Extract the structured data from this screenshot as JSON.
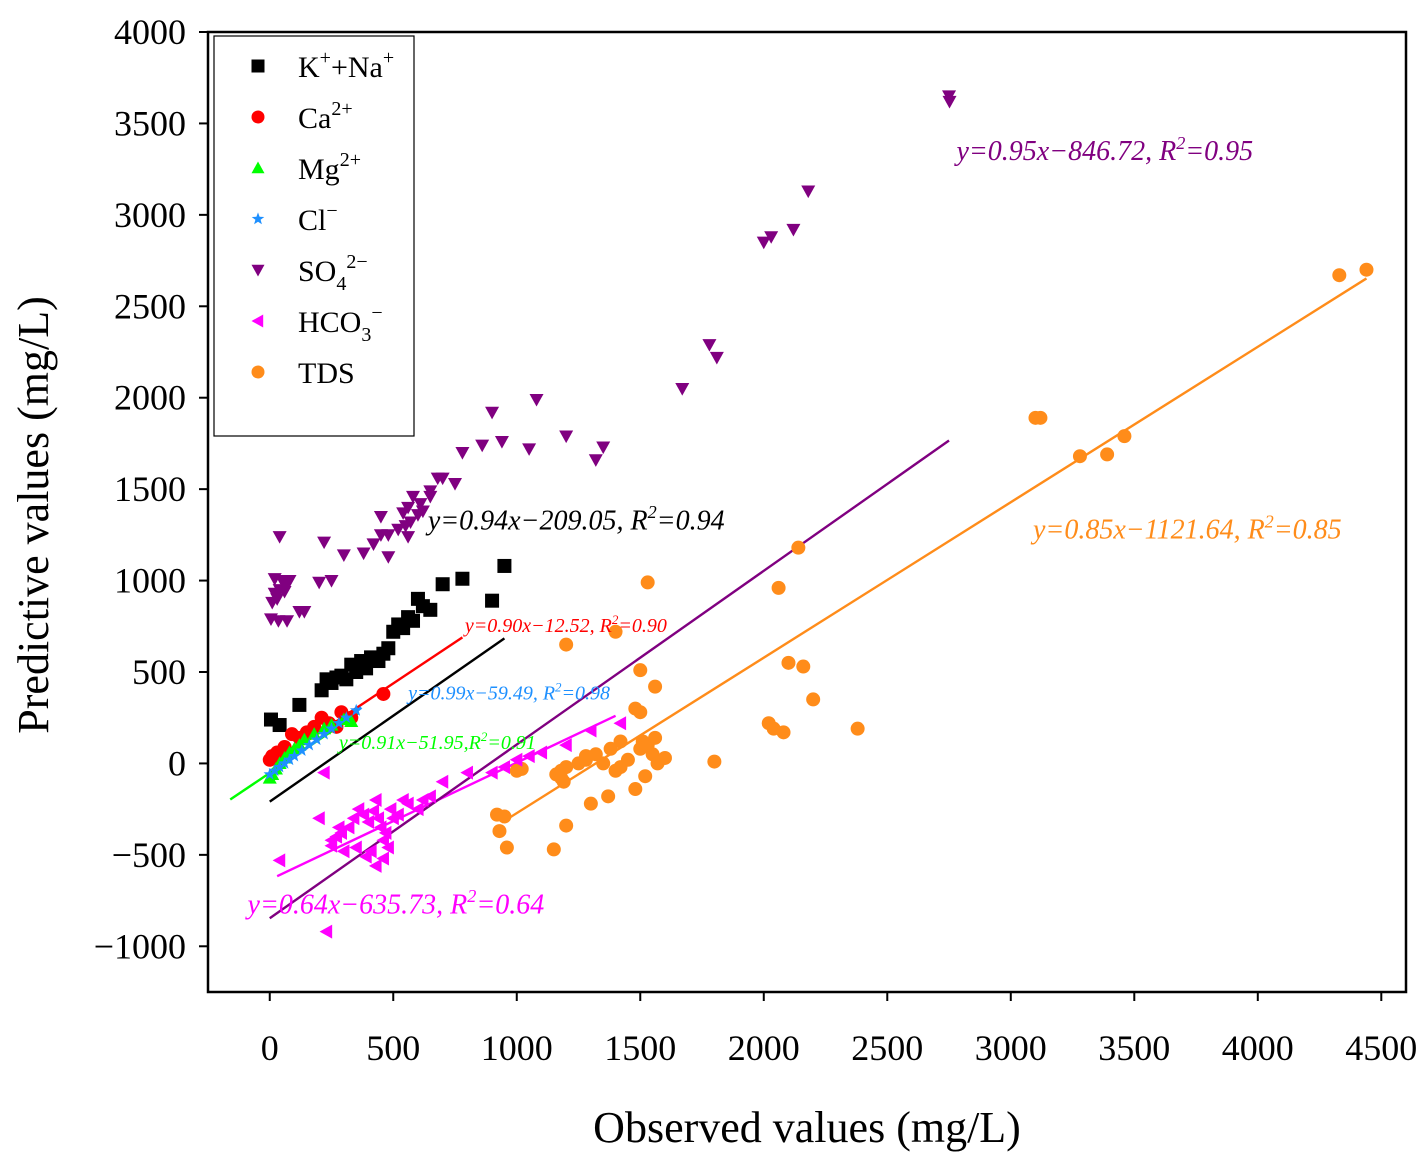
{
  "chart_data": {
    "type": "scatter",
    "xlabel": "Observed values (mg/L)",
    "ylabel": "Predictive values (mg/L)",
    "xlim": [
      -250,
      4600
    ],
    "ylim": [
      -1250,
      4000
    ],
    "x_ticks": [
      0,
      500,
      1000,
      1500,
      2000,
      2500,
      3000,
      3500,
      4000,
      4500
    ],
    "y_ticks": [
      -1000,
      -500,
      0,
      500,
      1000,
      1500,
      2000,
      2500,
      3000,
      3500,
      4000
    ],
    "x_tick_labels": [
      "0",
      "500",
      "1000",
      "1500",
      "2000",
      "2500",
      "3000",
      "3500",
      "4000",
      "4500"
    ],
    "y_tick_labels": [
      "−1000",
      "−500",
      "0",
      "500",
      "1000",
      "1500",
      "2000",
      "2500",
      "3000",
      "3500",
      "4000"
    ],
    "legend_position": "top-left",
    "series": [
      {
        "key": "kna",
        "name": "K⁺+Na⁺",
        "legend": {
          "base": "K",
          "sup1": "+",
          "mid": "+Na",
          "sup2": "+"
        },
        "marker": "square",
        "color": "#000000",
        "fit": {
          "slope": 0.94,
          "intercept": -209.05,
          "x_range": [
            0,
            950
          ]
        },
        "equation": {
          "main": "y=0.94x−209.05, R",
          "sup": "2",
          "tail": "=0.94"
        },
        "points": [
          [
            5,
            240
          ],
          [
            40,
            210
          ],
          [
            120,
            320
          ],
          [
            210,
            400
          ],
          [
            230,
            460
          ],
          [
            250,
            440
          ],
          [
            270,
            470
          ],
          [
            290,
            480
          ],
          [
            310,
            460
          ],
          [
            330,
            540
          ],
          [
            350,
            500
          ],
          [
            370,
            560
          ],
          [
            390,
            520
          ],
          [
            410,
            580
          ],
          [
            440,
            560
          ],
          [
            460,
            600
          ],
          [
            480,
            630
          ],
          [
            500,
            720
          ],
          [
            520,
            760
          ],
          [
            540,
            740
          ],
          [
            560,
            800
          ],
          [
            580,
            780
          ],
          [
            600,
            900
          ],
          [
            620,
            860
          ],
          [
            650,
            840
          ],
          [
            700,
            980
          ],
          [
            780,
            1010
          ],
          [
            900,
            890
          ],
          [
            950,
            1080
          ]
        ]
      },
      {
        "key": "ca",
        "name": "Ca²⁺",
        "legend": {
          "base": "Ca",
          "sup1": "2+"
        },
        "marker": "circle",
        "color": "#ff0000",
        "fit": {
          "slope": 0.9,
          "intercept": -12.52,
          "x_range": [
            0,
            780
          ]
        },
        "equation": {
          "main": "y=0.90x−12.52, R",
          "sup": "2",
          "tail": "=0.90"
        },
        "points": [
          [
            0,
            20
          ],
          [
            10,
            40
          ],
          [
            30,
            60
          ],
          [
            60,
            90
          ],
          [
            90,
            160
          ],
          [
            120,
            140
          ],
          [
            150,
            170
          ],
          [
            180,
            200
          ],
          [
            210,
            250
          ],
          [
            240,
            220
          ],
          [
            270,
            200
          ],
          [
            290,
            280
          ],
          [
            330,
            250
          ],
          [
            460,
            380
          ]
        ]
      },
      {
        "key": "mg",
        "name": "Mg²⁺",
        "legend": {
          "base": "Mg",
          "sup1": "2+"
        },
        "marker": "triangle-up",
        "color": "#00ff00",
        "fit": {
          "slope": 0.91,
          "intercept": -51.95,
          "x_range": [
            -160,
            360
          ]
        },
        "equation": {
          "main": "y=0.91x−51.95,R",
          "sup": "2",
          "tail": "=0.91"
        },
        "points": [
          [
            0,
            -80
          ],
          [
            10,
            -60
          ],
          [
            25,
            -30
          ],
          [
            40,
            0
          ],
          [
            60,
            30
          ],
          [
            80,
            60
          ],
          [
            100,
            80
          ],
          [
            120,
            100
          ],
          [
            140,
            130
          ],
          [
            180,
            160
          ],
          [
            220,
            190
          ],
          [
            250,
            210
          ],
          [
            300,
            240
          ],
          [
            330,
            230
          ]
        ]
      },
      {
        "key": "cl",
        "name": "Cl⁻",
        "legend": {
          "base": "Cl",
          "sup1": "−"
        },
        "marker": "star",
        "color": "#1e90ff",
        "fit": {
          "slope": 0.99,
          "intercept": -59.49,
          "x_range": [
            0,
            370
          ]
        },
        "equation": {
          "main": "y=0.99x−59.49, R",
          "sup": "2",
          "tail": "=0.98"
        },
        "points": [
          [
            0,
            -60
          ],
          [
            20,
            -40
          ],
          [
            40,
            -20
          ],
          [
            60,
            0
          ],
          [
            80,
            20
          ],
          [
            100,
            40
          ],
          [
            130,
            70
          ],
          [
            160,
            100
          ],
          [
            190,
            130
          ],
          [
            220,
            160
          ],
          [
            250,
            190
          ],
          [
            280,
            220
          ],
          [
            310,
            250
          ],
          [
            350,
            290
          ]
        ]
      },
      {
        "key": "so4",
        "name": "SO₄²⁻",
        "legend": {
          "base": "SO",
          "sub": "4",
          "sup1": "2−"
        },
        "marker": "triangle-down",
        "color": "#800080",
        "fit": {
          "slope": 0.95,
          "intercept": -846.72,
          "x_range": [
            0,
            2750
          ]
        },
        "equation": {
          "main": "y=0.95x−846.72, R",
          "sup": "2",
          "tail": "=0.95"
        },
        "points": [
          [
            10,
            880
          ],
          [
            20,
            930
          ],
          [
            30,
            900
          ],
          [
            40,
            950
          ],
          [
            50,
            1000
          ],
          [
            60,
            940
          ],
          [
            70,
            980
          ],
          [
            80,
            1000
          ],
          [
            5,
            790
          ],
          [
            35,
            780
          ],
          [
            70,
            780
          ],
          [
            20,
            1010
          ],
          [
            40,
            1240
          ],
          [
            120,
            830
          ],
          [
            140,
            830
          ],
          [
            200,
            990
          ],
          [
            250,
            1000
          ],
          [
            220,
            1210
          ],
          [
            300,
            1140
          ],
          [
            380,
            1150
          ],
          [
            420,
            1200
          ],
          [
            450,
            1350
          ],
          [
            480,
            1250
          ],
          [
            520,
            1280
          ],
          [
            540,
            1370
          ],
          [
            560,
            1400
          ],
          [
            580,
            1460
          ],
          [
            610,
            1420
          ],
          [
            650,
            1490
          ],
          [
            680,
            1560
          ],
          [
            780,
            1700
          ],
          [
            940,
            1760
          ],
          [
            1050,
            1720
          ],
          [
            1080,
            1990
          ],
          [
            1200,
            1790
          ],
          [
            1320,
            1660
          ],
          [
            1350,
            1730
          ],
          [
            1670,
            2050
          ],
          [
            1780,
            2290
          ],
          [
            1810,
            2220
          ],
          [
            2000,
            2850
          ],
          [
            2030,
            2880
          ],
          [
            2120,
            2920
          ],
          [
            2180,
            3130
          ],
          [
            2750,
            3650
          ],
          [
            2752,
            3620
          ],
          [
            570,
            1320
          ],
          [
            600,
            1360
          ],
          [
            650,
            1460
          ],
          [
            700,
            1560
          ],
          [
            750,
            1530
          ],
          [
            860,
            1740
          ],
          [
            900,
            1920
          ],
          [
            560,
            1240
          ],
          [
            450,
            1250
          ],
          [
            480,
            1130
          ],
          [
            550,
            1300
          ],
          [
            620,
            1380
          ]
        ]
      },
      {
        "key": "hco3",
        "name": "HCO₃⁻",
        "legend": {
          "base": "HCO",
          "sub": "3",
          "sup1": "−"
        },
        "marker": "triangle-left",
        "color": "#ff00ff",
        "fit": {
          "slope": 0.64,
          "intercept": -635.73,
          "x_range": [
            30,
            1400
          ]
        },
        "equation": {
          "main": "y=0.64x−635.73, R",
          "sup": "2",
          "tail": "=0.64"
        },
        "points": [
          [
            40,
            -530
          ],
          [
            200,
            -300
          ],
          [
            220,
            -50
          ],
          [
            230,
            -920
          ],
          [
            250,
            -450
          ],
          [
            270,
            -400
          ],
          [
            290,
            -380
          ],
          [
            300,
            -480
          ],
          [
            320,
            -350
          ],
          [
            340,
            -300
          ],
          [
            360,
            -250
          ],
          [
            380,
            -280
          ],
          [
            400,
            -320
          ],
          [
            420,
            -260
          ],
          [
            430,
            -200
          ],
          [
            440,
            -300
          ],
          [
            450,
            -350
          ],
          [
            460,
            -420
          ],
          [
            470,
            -380
          ],
          [
            480,
            -460
          ],
          [
            490,
            -250
          ],
          [
            500,
            -300
          ],
          [
            520,
            -280
          ],
          [
            540,
            -200
          ],
          [
            560,
            -220
          ],
          [
            600,
            -250
          ],
          [
            620,
            -200
          ],
          [
            650,
            -180
          ],
          [
            700,
            -100
          ],
          [
            800,
            -50
          ],
          [
            900,
            -50
          ],
          [
            950,
            -20
          ],
          [
            1000,
            20
          ],
          [
            1050,
            40
          ],
          [
            1100,
            60
          ],
          [
            1200,
            100
          ],
          [
            1300,
            180
          ],
          [
            1420,
            220
          ],
          [
            250,
            -420
          ],
          [
            280,
            -350
          ],
          [
            350,
            -460
          ],
          [
            390,
            -510
          ],
          [
            410,
            -480
          ],
          [
            430,
            -560
          ],
          [
            460,
            -520
          ]
        ]
      },
      {
        "key": "tds",
        "name": "TDS",
        "legend": {
          "base": "TDS"
        },
        "marker": "circle",
        "color": "#ff8c1a",
        "fit": {
          "slope": 0.85,
          "intercept": -1121.64,
          "x_range": [
            940,
            4440
          ]
        },
        "equation": {
          "main": "y=0.85x−1121.64, R",
          "sup": "2",
          "tail": "=0.85"
        },
        "points": [
          [
            920,
            -280
          ],
          [
            930,
            -370
          ],
          [
            950,
            -290
          ],
          [
            960,
            -460
          ],
          [
            1000,
            -40
          ],
          [
            1020,
            -30
          ],
          [
            1150,
            -470
          ],
          [
            1160,
            -60
          ],
          [
            1180,
            -80
          ],
          [
            1190,
            -100
          ],
          [
            1200,
            -340
          ],
          [
            1200,
            -20
          ],
          [
            1250,
            0
          ],
          [
            1280,
            20
          ],
          [
            1300,
            -220
          ],
          [
            1320,
            50
          ],
          [
            1350,
            0
          ],
          [
            1370,
            -180
          ],
          [
            1400,
            -40
          ],
          [
            1420,
            -20
          ],
          [
            1450,
            20
          ],
          [
            1480,
            -140
          ],
          [
            1500,
            80
          ],
          [
            1510,
            120
          ],
          [
            1520,
            -70
          ],
          [
            1530,
            100
          ],
          [
            1550,
            50
          ],
          [
            1560,
            140
          ],
          [
            1570,
            0
          ],
          [
            1600,
            30
          ],
          [
            1200,
            650
          ],
          [
            1400,
            720
          ],
          [
            1500,
            510
          ],
          [
            1530,
            990
          ],
          [
            1560,
            420
          ],
          [
            1480,
            300
          ],
          [
            1500,
            280
          ],
          [
            1800,
            10
          ],
          [
            2020,
            220
          ],
          [
            2040,
            190
          ],
          [
            2060,
            960
          ],
          [
            2080,
            170
          ],
          [
            2100,
            550
          ],
          [
            2140,
            1180
          ],
          [
            2160,
            530
          ],
          [
            2200,
            350
          ],
          [
            2380,
            190
          ],
          [
            3100,
            1890
          ],
          [
            3120,
            1890
          ],
          [
            3280,
            1680
          ],
          [
            3390,
            1690
          ],
          [
            3460,
            1790
          ],
          [
            4330,
            2670
          ],
          [
            4440,
            2700
          ],
          [
            1180,
            -40
          ],
          [
            1280,
            40
          ],
          [
            1380,
            80
          ],
          [
            1420,
            120
          ]
        ]
      }
    ]
  }
}
